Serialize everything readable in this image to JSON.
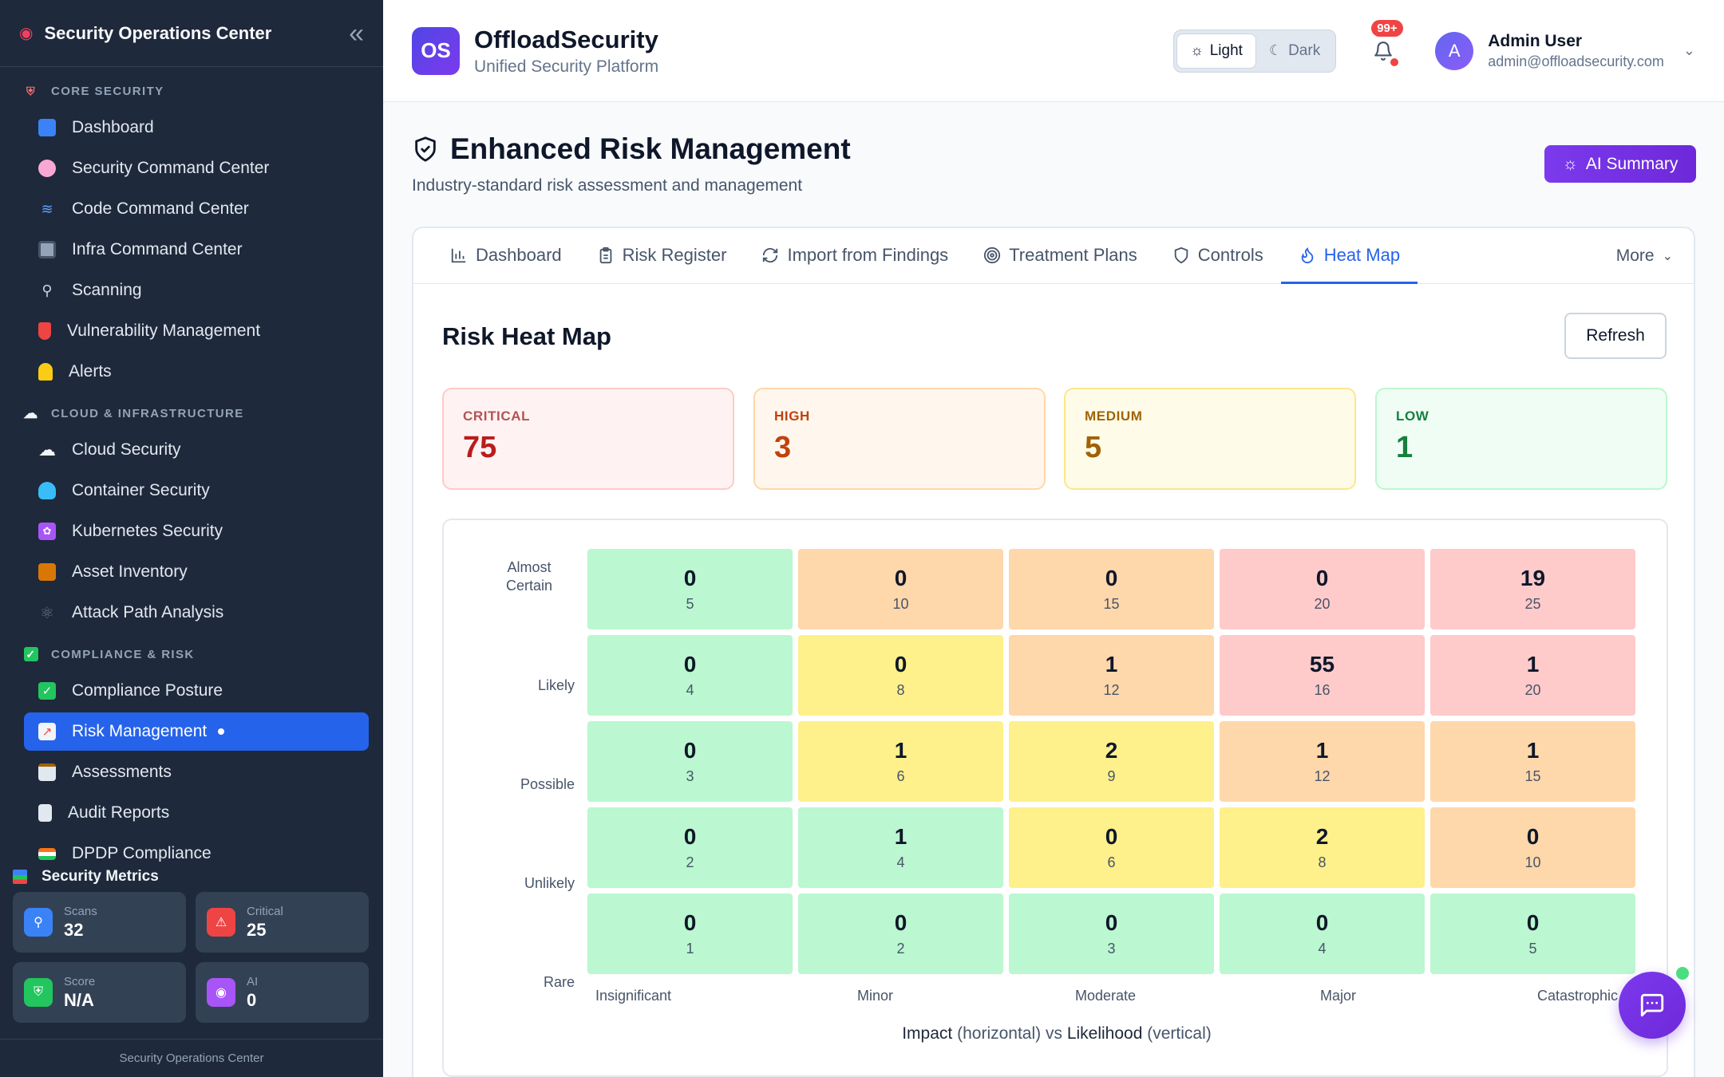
{
  "sidebar": {
    "title": "Security Operations Center",
    "sections": [
      {
        "label": "CORE SECURITY",
        "icon": "shield-icon",
        "items": [
          {
            "label": "Dashboard",
            "icon": "bar-chart-icon"
          },
          {
            "label": "Security Command Center",
            "icon": "brain-icon"
          },
          {
            "label": "Code Command Center",
            "icon": "dna-icon"
          },
          {
            "label": "Infra Command Center",
            "icon": "monitor-icon"
          },
          {
            "label": "Scanning",
            "icon": "magnifier-icon"
          },
          {
            "label": "Vulnerability Management",
            "icon": "shield-icon"
          },
          {
            "label": "Alerts",
            "icon": "bell-icon"
          }
        ]
      },
      {
        "label": "CLOUD & INFRASTRUCTURE",
        "icon": "cloud-icon",
        "items": [
          {
            "label": "Cloud Security",
            "icon": "cloud-icon"
          },
          {
            "label": "Container Security",
            "icon": "whale-icon"
          },
          {
            "label": "Kubernetes Security",
            "icon": "helm-icon"
          },
          {
            "label": "Asset Inventory",
            "icon": "package-icon"
          },
          {
            "label": "Attack Path Analysis",
            "icon": "atom-icon"
          }
        ]
      },
      {
        "label": "COMPLIANCE & RISK",
        "icon": "checkbox-icon",
        "items": [
          {
            "label": "Compliance Posture",
            "icon": "checkbox-icon"
          },
          {
            "label": "Risk Management",
            "icon": "chart-up-icon",
            "active": true
          },
          {
            "label": "Assessments",
            "icon": "clipboard-icon"
          },
          {
            "label": "Audit Reports",
            "icon": "document-icon"
          },
          {
            "label": "DPDP Compliance",
            "icon": "flag-icon"
          }
        ]
      }
    ],
    "metrics_title": "Security Metrics",
    "metrics": [
      {
        "label": "Scans",
        "value": "32",
        "icon": "magnifier-icon",
        "color": "#3b82f6"
      },
      {
        "label": "Critical",
        "value": "25",
        "icon": "warning-icon",
        "color": "#ef4444"
      },
      {
        "label": "Score",
        "value": "N/A",
        "icon": "shield-icon",
        "color": "#22c55e"
      },
      {
        "label": "AI",
        "value": "0",
        "icon": "robot-icon",
        "color": "#a855f7"
      }
    ],
    "footer": "Security Operations Center"
  },
  "topbar": {
    "badge": "OS",
    "brand": "OffloadSecurity",
    "tagline": "Unified Security Platform",
    "theme_light": "Light",
    "theme_dark": "Dark",
    "notification_count": "99+",
    "avatar_initial": "A",
    "user_name": "Admin User",
    "user_email": "admin@offloadsecurity.com"
  },
  "page": {
    "title": "Enhanced Risk Management",
    "subtitle": "Industry-standard risk assessment and management",
    "ai_button": "AI Summary",
    "tabs": [
      {
        "label": "Dashboard",
        "icon": "bar-chart-icon"
      },
      {
        "label": "Risk Register",
        "icon": "clipboard-icon"
      },
      {
        "label": "Import from Findings",
        "icon": "refresh-icon"
      },
      {
        "label": "Treatment Plans",
        "icon": "target-icon"
      },
      {
        "label": "Controls",
        "icon": "shield-icon"
      },
      {
        "label": "Heat Map",
        "icon": "flame-icon",
        "active": true
      }
    ],
    "more": "More"
  },
  "heatmap": {
    "title": "Risk Heat Map",
    "refresh": "Refresh",
    "severity": [
      {
        "label": "CRITICAL",
        "value": "75"
      },
      {
        "label": "HIGH",
        "value": "3"
      },
      {
        "label": "MEDIUM",
        "value": "5"
      },
      {
        "label": "LOW",
        "value": "1"
      }
    ],
    "likelihood_labels": [
      "Almost Certain",
      "Likely",
      "Possible",
      "Unlikely",
      "Rare"
    ],
    "impact_labels": [
      "Insignificant",
      "Minor",
      "Moderate",
      "Major",
      "Catastrophic"
    ],
    "caption_prefix": "Impact",
    "caption_mid": "(horizontal) vs",
    "caption_bold2": "Likelihood",
    "caption_suffix": "(vertical)",
    "cells": [
      [
        {
          "count": "0",
          "score": "5",
          "level": "low"
        },
        {
          "count": "0",
          "score": "10",
          "level": "high"
        },
        {
          "count": "0",
          "score": "15",
          "level": "high"
        },
        {
          "count": "0",
          "score": "20",
          "level": "critical"
        },
        {
          "count": "19",
          "score": "25",
          "level": "critical"
        }
      ],
      [
        {
          "count": "0",
          "score": "4",
          "level": "low"
        },
        {
          "count": "0",
          "score": "8",
          "level": "medium"
        },
        {
          "count": "1",
          "score": "12",
          "level": "high"
        },
        {
          "count": "55",
          "score": "16",
          "level": "critical"
        },
        {
          "count": "1",
          "score": "20",
          "level": "critical"
        }
      ],
      [
        {
          "count": "0",
          "score": "3",
          "level": "low"
        },
        {
          "count": "1",
          "score": "6",
          "level": "medium"
        },
        {
          "count": "2",
          "score": "9",
          "level": "medium"
        },
        {
          "count": "1",
          "score": "12",
          "level": "high"
        },
        {
          "count": "1",
          "score": "15",
          "level": "high"
        }
      ],
      [
        {
          "count": "0",
          "score": "2",
          "level": "low"
        },
        {
          "count": "1",
          "score": "4",
          "level": "low"
        },
        {
          "count": "0",
          "score": "6",
          "level": "medium"
        },
        {
          "count": "2",
          "score": "8",
          "level": "medium"
        },
        {
          "count": "0",
          "score": "10",
          "level": "high"
        }
      ],
      [
        {
          "count": "0",
          "score": "1",
          "level": "low"
        },
        {
          "count": "0",
          "score": "2",
          "level": "low"
        },
        {
          "count": "0",
          "score": "3",
          "level": "low"
        },
        {
          "count": "0",
          "score": "4",
          "level": "low"
        },
        {
          "count": "0",
          "score": "5",
          "level": "low"
        }
      ]
    ],
    "level_colors": {
      "low": "#bbf7d0",
      "medium": "#fef08a",
      "high": "#fed7aa",
      "critical": "#fecaca"
    }
  }
}
